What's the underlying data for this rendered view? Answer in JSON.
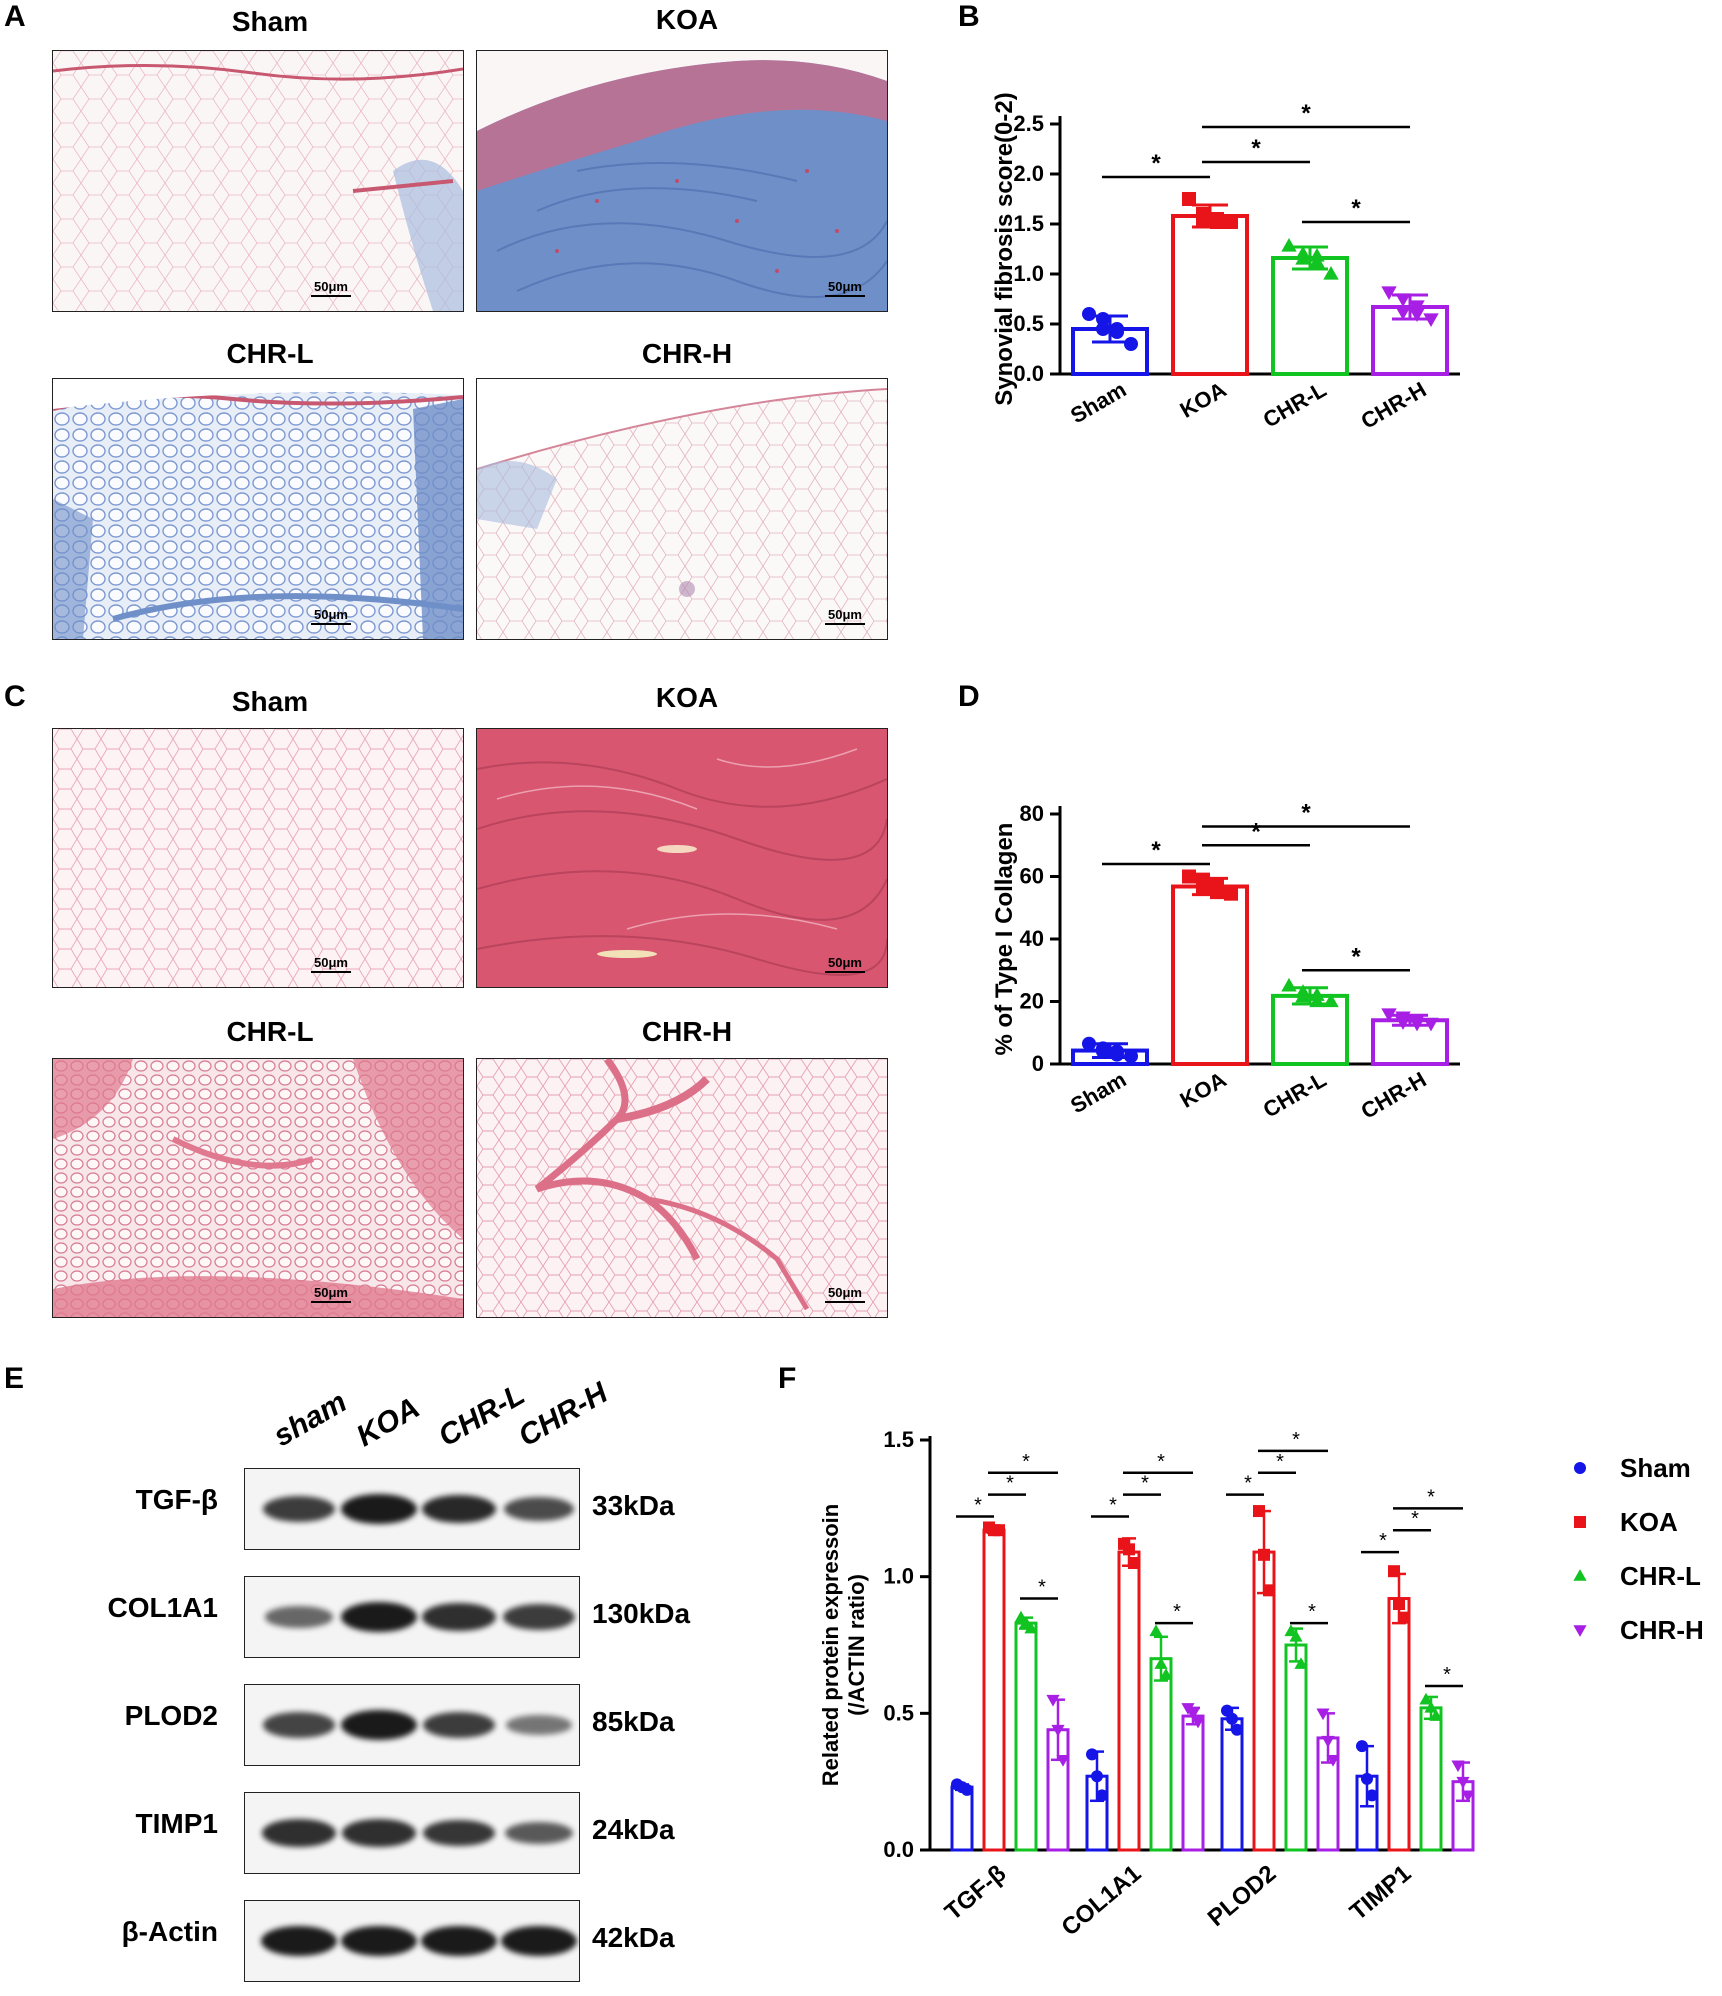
{
  "panels": {
    "A": {
      "letter": "A",
      "titles": [
        "Sham",
        "KOA",
        "CHR-L",
        "CHR-H"
      ],
      "scale": "50μm"
    },
    "C": {
      "letter": "C",
      "titles": [
        "Sham",
        "KOA",
        "CHR-L",
        "CHR-H"
      ],
      "scale": "50μm"
    },
    "B": {
      "letter": "B"
    },
    "D": {
      "letter": "D"
    },
    "E": {
      "letter": "E",
      "lanes": [
        "sham",
        "KOA",
        "CHR-L",
        "CHR-H"
      ],
      "rows": [
        {
          "protein": "TGF-β",
          "size": "33kDa"
        },
        {
          "protein": "COL1A1",
          "size": "130kDa"
        },
        {
          "protein": "PLOD2",
          "size": "85kDa"
        },
        {
          "protein": "TIMP1",
          "size": "24kDa"
        },
        {
          "protein": "β-Actin",
          "size": "42kDa"
        }
      ]
    },
    "F": {
      "letter": "F"
    }
  },
  "colors": {
    "Sham": "#1515e8",
    "KOA": "#e8141a",
    "CHR-L": "#12c421",
    "CHR-H": "#a71fe4",
    "masson_blue": "#6f8fc8",
    "sirius_red": "#d85a78"
  },
  "chart_data": [
    {
      "id": "B",
      "type": "bar",
      "ylabel": "Synovial fibrosis score(0-2)",
      "categories": [
        "Sham",
        "KOA",
        "CHR-L",
        "CHR-H"
      ],
      "values": [
        0.45,
        1.58,
        1.16,
        0.67
      ],
      "errors": [
        0.13,
        0.11,
        0.11,
        0.12
      ],
      "points": [
        [
          0.6,
          0.55,
          0.45,
          0.45,
          0.42,
          0.3
        ],
        [
          1.75,
          1.6,
          1.55,
          1.55,
          1.52,
          1.52
        ],
        [
          1.28,
          1.2,
          1.18,
          1.15,
          1.12,
          1.0
        ],
        [
          0.82,
          0.75,
          0.68,
          0.62,
          0.6,
          0.55
        ]
      ],
      "ylim": [
        0,
        2.5
      ],
      "yticks": [
        "0.0",
        "0.5",
        "1.0",
        "1.5",
        "2.0",
        "2.5"
      ],
      "significance": [
        {
          "from": 0,
          "to": 1,
          "y": 1.97,
          "label": "*"
        },
        {
          "from": 1,
          "to": 2,
          "y": 2.12,
          "label": "*"
        },
        {
          "from": 1,
          "to": 3,
          "y": 2.47,
          "label": "*"
        },
        {
          "from": 2,
          "to": 3,
          "y": 1.52,
          "label": "*"
        }
      ]
    },
    {
      "id": "D",
      "type": "bar",
      "ylabel": "% of Type I Collagen",
      "categories": [
        "Sham",
        "KOA",
        "CHR-L",
        "CHR-H"
      ],
      "values": [
        4.3,
        56.8,
        21.8,
        14.0
      ],
      "errors": [
        2.2,
        2.6,
        2.6,
        1.6
      ],
      "points": [
        [
          6.5,
          5,
          4,
          4,
          3,
          2.5
        ],
        [
          60,
          59,
          57.5,
          56,
          55,
          54.5
        ],
        [
          25,
          23,
          22,
          21.5,
          20,
          20
        ],
        [
          16,
          15,
          14,
          13.5,
          13,
          13
        ]
      ],
      "ylim": [
        0,
        80
      ],
      "yticks": [
        "0",
        "20",
        "40",
        "60",
        "80"
      ],
      "significance": [
        {
          "from": 0,
          "to": 1,
          "y": 64,
          "label": "*"
        },
        {
          "from": 1,
          "to": 2,
          "y": 70,
          "label": "*"
        },
        {
          "from": 1,
          "to": 3,
          "y": 76,
          "label": "*"
        },
        {
          "from": 2,
          "to": 3,
          "y": 30,
          "label": "*"
        }
      ]
    },
    {
      "id": "F",
      "type": "bar",
      "ylabel": "Related protein expressoin",
      "ylabel2": "(/ACTIN ratio)",
      "categories": [
        "TGF-β",
        "COL1A1",
        "PLOD2",
        "TIMP1"
      ],
      "series": [
        {
          "name": "Sham",
          "values": [
            0.23,
            0.27,
            0.48,
            0.27
          ],
          "errors": [
            0.01,
            0.09,
            0.04,
            0.11
          ],
          "points": [
            [
              0.24,
              0.23,
              0.22
            ],
            [
              0.35,
              0.27,
              0.2
            ],
            [
              0.51,
              0.48,
              0.44
            ],
            [
              0.38,
              0.26,
              0.2
            ]
          ]
        },
        {
          "name": "KOA",
          "values": [
            1.17,
            1.09,
            1.09,
            0.92
          ],
          "errors": [
            0.01,
            0.05,
            0.15,
            0.09
          ],
          "points": [
            [
              1.18,
              1.17,
              1.17
            ],
            [
              1.12,
              1.1,
              1.05
            ],
            [
              1.24,
              1.08,
              0.95
            ],
            [
              1.02,
              0.9,
              0.85
            ]
          ]
        },
        {
          "name": "CHR-L",
          "values": [
            0.83,
            0.7,
            0.75,
            0.52
          ],
          "errors": [
            0.02,
            0.08,
            0.06,
            0.04
          ],
          "points": [
            [
              0.85,
              0.83,
              0.81
            ],
            [
              0.8,
              0.68,
              0.64
            ],
            [
              0.8,
              0.78,
              0.68
            ],
            [
              0.55,
              0.52,
              0.49
            ]
          ]
        },
        {
          "name": "CHR-H",
          "values": [
            0.44,
            0.49,
            0.41,
            0.25
          ],
          "errors": [
            0.11,
            0.03,
            0.09,
            0.07
          ],
          "points": [
            [
              0.55,
              0.44,
              0.33
            ],
            [
              0.52,
              0.5,
              0.47
            ],
            [
              0.5,
              0.4,
              0.33
            ],
            [
              0.31,
              0.25,
              0.2
            ]
          ]
        }
      ],
      "ylim": [
        0,
        1.5
      ],
      "yticks": [
        "0.0",
        "0.5",
        "1.0",
        "1.5"
      ],
      "markers": [
        "circle",
        "square",
        "triangle-up",
        "triangle-down"
      ],
      "legend_position": "right",
      "significance": [
        {
          "group": 0,
          "from": 0,
          "to": 1,
          "y": 1.22,
          "label": "*"
        },
        {
          "group": 0,
          "from": 1,
          "to": 2,
          "y": 1.3,
          "label": "*"
        },
        {
          "group": 0,
          "from": 1,
          "to": 3,
          "y": 1.38,
          "label": "*"
        },
        {
          "group": 0,
          "from": 2,
          "to": 3,
          "y": 0.92,
          "label": "*"
        },
        {
          "group": 1,
          "from": 0,
          "to": 1,
          "y": 1.22,
          "label": "*"
        },
        {
          "group": 1,
          "from": 1,
          "to": 2,
          "y": 1.3,
          "label": "*"
        },
        {
          "group": 1,
          "from": 1,
          "to": 3,
          "y": 1.38,
          "label": "*"
        },
        {
          "group": 1,
          "from": 2,
          "to": 3,
          "y": 0.83,
          "label": "*"
        },
        {
          "group": 2,
          "from": 0,
          "to": 1,
          "y": 1.3,
          "label": "*"
        },
        {
          "group": 2,
          "from": 1,
          "to": 2,
          "y": 1.38,
          "label": "*"
        },
        {
          "group": 2,
          "from": 1,
          "to": 3,
          "y": 1.46,
          "label": "*"
        },
        {
          "group": 2,
          "from": 2,
          "to": 3,
          "y": 0.83,
          "label": "*"
        },
        {
          "group": 3,
          "from": 0,
          "to": 1,
          "y": 1.09,
          "label": "*"
        },
        {
          "group": 3,
          "from": 1,
          "to": 2,
          "y": 1.17,
          "label": "*"
        },
        {
          "group": 3,
          "from": 1,
          "to": 3,
          "y": 1.25,
          "label": "*"
        },
        {
          "group": 3,
          "from": 2,
          "to": 3,
          "y": 0.6,
          "label": "*"
        }
      ]
    }
  ]
}
